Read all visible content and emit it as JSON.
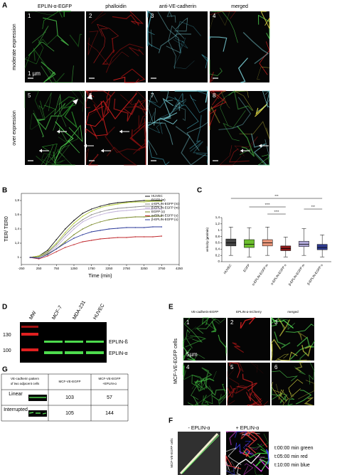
{
  "panel_labels": [
    "A",
    "B",
    "C",
    "D",
    "E",
    "F",
    "G"
  ],
  "panel_a": {
    "columns": [
      "EPLIN-α-EGFP",
      "phalloidin",
      "anti-VE-cadherin",
      "merged"
    ],
    "rows": [
      "moderate expression",
      "over expression"
    ],
    "numbers": [
      "1",
      "2",
      "3",
      "4",
      "5",
      "6",
      "7",
      "8"
    ],
    "scale": "1 µm"
  },
  "chart_data": [
    {
      "type": "line",
      "x_label": "Time (min)",
      "y_label": "TER/ TER0",
      "x": [
        0,
        250,
        500,
        750,
        1000,
        1250,
        1500,
        1750,
        2000,
        2250,
        2500,
        2750,
        3000,
        3250,
        3500,
        3750
      ],
      "series": [
        {
          "name": "HUVEC",
          "color": "#111111",
          "values": [
            1.0,
            1.02,
            1.1,
            1.25,
            1.4,
            1.52,
            1.62,
            1.68,
            1.72,
            1.75,
            1.77,
            1.78,
            1.79,
            1.8,
            1.8,
            1.8
          ]
        },
        {
          "name": "EGFP (w)",
          "color": "#b5cf3a",
          "values": [
            1.0,
            1.02,
            1.08,
            1.2,
            1.35,
            1.48,
            1.58,
            1.65,
            1.7,
            1.73,
            1.75,
            1.77,
            1.78,
            1.78,
            1.79,
            1.79
          ]
        },
        {
          "name": "α-EPLIN-EGFP (m)",
          "color": "#8c8c8c",
          "values": [
            1.0,
            1.01,
            1.07,
            1.18,
            1.32,
            1.44,
            1.53,
            1.6,
            1.64,
            1.67,
            1.69,
            1.7,
            1.71,
            1.72,
            1.72,
            1.72
          ]
        },
        {
          "name": "β-EPLIN-EGFP (m)",
          "color": "#c0b0d8",
          "values": [
            1.0,
            1.01,
            1.06,
            1.15,
            1.28,
            1.4,
            1.5,
            1.56,
            1.6,
            1.63,
            1.65,
            1.66,
            1.67,
            1.68,
            1.68,
            1.68
          ]
        },
        {
          "name": "EGFP (o)",
          "color": "#7a8a2a",
          "values": [
            1.0,
            1.01,
            1.05,
            1.12,
            1.22,
            1.32,
            1.4,
            1.46,
            1.5,
            1.53,
            1.55,
            1.56,
            1.57,
            1.57,
            1.58,
            1.58
          ]
        },
        {
          "name": "α-EPLIN-EGFP (o)",
          "color": "#c0282d",
          "values": [
            1.0,
            0.98,
            1.02,
            1.08,
            1.14,
            1.18,
            1.22,
            1.24,
            1.26,
            1.27,
            1.28,
            1.28,
            1.29,
            1.29,
            1.29,
            1.3
          ]
        },
        {
          "name": "β-EPLIN-EGFP (o)",
          "color": "#2b3a9a",
          "values": [
            1.0,
            0.99,
            1.04,
            1.12,
            1.2,
            1.27,
            1.32,
            1.36,
            1.38,
            1.4,
            1.41,
            1.42,
            1.42,
            1.42,
            1.43,
            1.43
          ]
        }
      ],
      "xlim": [
        -250,
        4250
      ],
      "xticks": [
        -250,
        250,
        750,
        1250,
        1750,
        2250,
        2750,
        3250,
        3750,
        4250
      ],
      "ylim": [
        0.9,
        1.9
      ],
      "yticks": [
        1,
        {
          "value": 1.2,
          "label": "1,2"
        },
        {
          "value": 1.4,
          "label": "1,4"
        },
        {
          "value": 1.6,
          "label": "1,6"
        },
        {
          "value": 1.8,
          "label": "1,8"
        }
      ],
      "legend": "top-right"
    },
    {
      "type": "box",
      "y_label": "velocity (µm/min)",
      "categories": [
        "HUVEC",
        "EGFP",
        "α-EPLIN-EGFP m",
        "α-EPLIN-EGFP o",
        "β-EPLIN-EGFP m",
        "β-EPLIN-EGFP o"
      ],
      "colors": [
        "#444444",
        "#6cbf2e",
        "#e9967a",
        "#8b1a1a",
        "#b0a8d8",
        "#2f3b8f"
      ],
      "boxes": [
        {
          "min": 0.2,
          "q1": 0.5,
          "median": 0.6,
          "q3": 0.72,
          "max": 1.1
        },
        {
          "min": 0.15,
          "q1": 0.45,
          "median": 0.55,
          "q3": 0.7,
          "max": 1.08
        },
        {
          "min": 0.2,
          "q1": 0.5,
          "median": 0.6,
          "q3": 0.7,
          "max": 1.1
        },
        {
          "min": 0.15,
          "q1": 0.35,
          "median": 0.42,
          "q3": 0.5,
          "max": 0.78
        },
        {
          "min": 0.2,
          "q1": 0.48,
          "median": 0.55,
          "q3": 0.65,
          "max": 1.05
        },
        {
          "min": 0.15,
          "q1": 0.38,
          "median": 0.45,
          "q3": 0.55,
          "max": 0.85
        }
      ],
      "ylim": [
        0,
        1.4
      ],
      "yticks": [
        0,
        {
          "value": 0.2,
          "label": "0,2"
        },
        {
          "value": 0.4,
          "label": "0,4"
        },
        {
          "value": 0.6,
          "label": "0,6"
        },
        {
          "value": 0.8,
          "label": "0,8"
        },
        1,
        {
          "value": 1.2,
          "label": "1,2"
        },
        {
          "value": 1.4,
          "label": "1,4"
        }
      ],
      "annotations": [
        "***",
        "****",
        "****",
        "***"
      ]
    }
  ],
  "panel_d": {
    "lanes": [
      "MW",
      "MCF-7",
      "MDA-231",
      "HUVEC"
    ],
    "markers": [
      130,
      100
    ],
    "bands": [
      "EPLIN-ß",
      "EPLIN-α"
    ]
  },
  "panel_e": {
    "columns": [
      "VE-cadherin-EGFP",
      "EPLIN-α-mCherry",
      "merged"
    ],
    "side": "MCF-VE-EGFP cells",
    "numbers": [
      "1",
      "2",
      "3",
      "4",
      "5",
      "6"
    ],
    "scale": "5µm"
  },
  "panel_f": {
    "columns": [
      "- EPLIN-α",
      "+ EPLIN-α"
    ],
    "side": "MCF-VE-EGFP cells",
    "legend": [
      "t:00:00 min green",
      "t:05:00 min red",
      "t:10:00 min blue"
    ]
  },
  "panel_g": {
    "header": [
      "VE-cadherin pattern of two adjacent cells",
      "MCF-VE-EGFP",
      "MCF-VE-EGFP +EPLIN-α"
    ],
    "rows": [
      [
        "Linear",
        103,
        57
      ],
      [
        "Interrupted",
        105,
        144
      ]
    ]
  }
}
